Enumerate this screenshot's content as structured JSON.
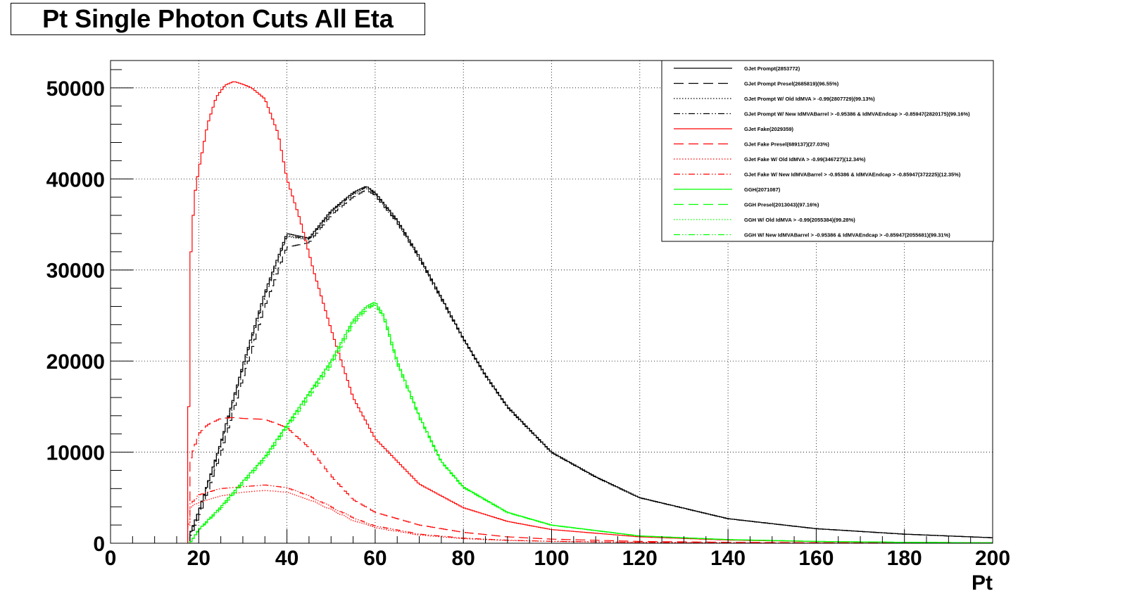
{
  "chart_data": {
    "type": "line",
    "title": "Pt Single Photon Cuts All Eta",
    "xlabel": "Pt",
    "ylabel": "",
    "xlim": [
      0,
      200
    ],
    "ylim": [
      0,
      53000
    ],
    "grid": true,
    "legend_position": "top-right",
    "x_ticks": [
      "0",
      "20",
      "40",
      "60",
      "80",
      "100",
      "120",
      "140",
      "160",
      "180",
      "200"
    ],
    "y_ticks": [
      "0",
      "10000",
      "20000",
      "30000",
      "40000",
      "50000"
    ],
    "series": [
      {
        "name": "GJet Prompt(2853772)",
        "color": "#000000",
        "dash": "solid",
        "x": [
          18,
          20,
          25,
          30,
          35,
          40,
          45,
          50,
          55,
          58,
          60,
          65,
          70,
          75,
          80,
          85,
          90,
          100,
          110,
          120,
          140,
          160,
          180,
          200
        ],
        "y": [
          1000,
          3500,
          11000,
          19500,
          27500,
          34000,
          33500,
          36500,
          38500,
          39200,
          38500,
          35500,
          31500,
          27000,
          22500,
          18500,
          15000,
          10000,
          7300,
          5000,
          2700,
          1600,
          1000,
          600
        ]
      },
      {
        "name": "GJet Prompt Presel(2685819)(96.55%)",
        "color": "#000000",
        "dash": "longdash",
        "x": [
          18,
          20,
          25,
          30,
          35,
          40,
          45,
          50,
          55,
          58,
          60,
          65,
          70,
          75,
          80,
          85,
          90,
          100,
          110,
          120,
          140,
          160,
          180,
          200
        ],
        "y": [
          600,
          2800,
          9800,
          18000,
          26000,
          32500,
          33000,
          36000,
          38000,
          38800,
          38200,
          35200,
          31300,
          26800,
          22400,
          18400,
          14900,
          9950,
          7250,
          4980,
          2690,
          1590,
          990,
          600
        ]
      },
      {
        "name": "GJet Prompt W/ Old IdMVA > -0.99(2807729)(99.13%)",
        "color": "#000000",
        "dash": "dotted",
        "x": [
          18,
          20,
          25,
          30,
          35,
          40,
          45,
          50,
          55,
          58,
          60,
          65,
          70,
          75,
          80,
          85,
          90,
          100,
          110,
          120,
          140,
          160,
          180,
          200
        ],
        "y": [
          900,
          3400,
          10800,
          19200,
          27200,
          33700,
          33300,
          36300,
          38300,
          39000,
          38300,
          35300,
          31300,
          26900,
          22400,
          18400,
          14950,
          9980,
          7280,
          4990,
          2690,
          1595,
          995,
          600
        ]
      },
      {
        "name": "GJet Prompt W/ New IdMVABarrel > -0.95386 & IdMVAEndcap > -0.85947(2820175)(99.16%)",
        "color": "#000000",
        "dash": "dashdotdot",
        "x": [
          18,
          20,
          25,
          30,
          35,
          40,
          45,
          50,
          55,
          58,
          60,
          65,
          70,
          75,
          80,
          85,
          90,
          100,
          110,
          120,
          140,
          160,
          180,
          200
        ],
        "y": [
          950,
          3450,
          10900,
          19300,
          27300,
          33800,
          33400,
          36400,
          38400,
          39100,
          38400,
          35400,
          31400,
          26950,
          22450,
          18450,
          14980,
          9990,
          7290,
          4995,
          2695,
          1598,
          998,
          600
        ]
      },
      {
        "name": "GJet Fake(2029359)",
        "color": "#ff0000",
        "dash": "solid",
        "x": [
          17.5,
          18,
          19,
          20,
          22,
          24,
          26,
          28,
          30,
          32,
          35,
          38,
          40,
          43,
          46,
          50,
          55,
          60,
          65,
          70,
          80,
          90,
          100,
          120,
          140,
          160,
          180,
          200
        ],
        "y": [
          0,
          30000,
          38000,
          41000,
          46000,
          49000,
          50300,
          50700,
          50400,
          50000,
          48800,
          45000,
          40000,
          35500,
          30000,
          23500,
          16000,
          11500,
          9000,
          6500,
          3900,
          2400,
          1500,
          700,
          350,
          180,
          100,
          50
        ]
      },
      {
        "name": "GJet Fake Presel(689137)(27.03%)",
        "color": "#ff0000",
        "dash": "longdash",
        "x": [
          17.5,
          18,
          20,
          22,
          25,
          28,
          30,
          35,
          40,
          45,
          50,
          55,
          60,
          70,
          80,
          90,
          100,
          120,
          140,
          160,
          180,
          200
        ],
        "y": [
          0,
          9000,
          12000,
          13000,
          13700,
          13800,
          13700,
          13600,
          12700,
          10500,
          7400,
          4800,
          3400,
          2000,
          1200,
          700,
          450,
          200,
          100,
          50,
          30,
          15
        ]
      },
      {
        "name": "GJet Fake W/ Old IdMVA > -0.99(346727)(12.34%)",
        "color": "#ff0000",
        "dash": "dotted",
        "x": [
          17.5,
          18,
          20,
          25,
          30,
          35,
          40,
          45,
          50,
          55,
          60,
          70,
          80,
          90,
          100,
          120,
          140,
          160,
          180,
          200
        ],
        "y": [
          0,
          3900,
          4500,
          5200,
          5600,
          5800,
          5600,
          4800,
          3700,
          2500,
          1700,
          900,
          500,
          300,
          200,
          90,
          40,
          20,
          10,
          5
        ]
      },
      {
        "name": "GJet Fake W/ New IdMVABarrel > -0.95386 & IdMVAEndcap > -0.85947(372225)(12.35%)",
        "color": "#ff0000",
        "dash": "dashdotdot",
        "x": [
          17.5,
          18,
          20,
          25,
          30,
          35,
          40,
          45,
          50,
          55,
          60,
          70,
          80,
          90,
          100,
          120,
          140,
          160,
          180,
          200
        ],
        "y": [
          0,
          4200,
          5300,
          6000,
          6200,
          6400,
          6100,
          5200,
          4000,
          2800,
          1900,
          1000,
          560,
          330,
          210,
          95,
          45,
          22,
          11,
          5
        ]
      },
      {
        "name": "GGH(2071087)",
        "color": "#00ff00",
        "dash": "solid",
        "x": [
          18,
          20,
          25,
          30,
          35,
          40,
          45,
          50,
          55,
          58,
          60,
          62,
          65,
          70,
          75,
          80,
          90,
          100,
          120,
          140,
          160,
          180,
          200
        ],
        "y": [
          0,
          1500,
          4000,
          6800,
          9500,
          13000,
          16500,
          20000,
          24500,
          26000,
          26500,
          25000,
          20000,
          14000,
          9000,
          6200,
          3400,
          2000,
          800,
          400,
          200,
          100,
          50
        ]
      },
      {
        "name": "GGH Presel(2013043)(97.16%)",
        "color": "#00ff00",
        "dash": "longdash",
        "x": [
          18,
          20,
          25,
          30,
          35,
          40,
          45,
          50,
          55,
          58,
          60,
          62,
          65,
          70,
          75,
          80,
          90,
          100,
          120,
          140,
          160,
          180,
          200
        ],
        "y": [
          0,
          1400,
          3800,
          6500,
          9200,
          12600,
          16000,
          19500,
          24000,
          25600,
          26200,
          24700,
          19700,
          13800,
          8900,
          6100,
          3350,
          1970,
          790,
          395,
          198,
          99,
          49
        ]
      },
      {
        "name": "GGH W/ Old IdMVA > -0.99(2055384)(99.28%)",
        "color": "#00ff00",
        "dash": "dotted",
        "x": [
          18,
          20,
          25,
          30,
          35,
          40,
          45,
          50,
          55,
          58,
          60,
          62,
          65,
          70,
          75,
          80,
          90,
          100,
          120,
          140,
          160,
          180,
          200
        ],
        "y": [
          0,
          1480,
          3960,
          6750,
          9430,
          12900,
          16400,
          19850,
          24300,
          25800,
          26300,
          24800,
          19850,
          13900,
          8950,
          6150,
          3380,
          1990,
          795,
          398,
          199,
          99,
          50
        ]
      },
      {
        "name": "GGH W/ New IdMVABarrel > -0.95386 & IdMVAEndcap > -0.85947(2055681)(99.31%)",
        "color": "#00ff00",
        "dash": "dashdotdot",
        "x": [
          18,
          20,
          25,
          30,
          35,
          40,
          45,
          50,
          55,
          58,
          60,
          62,
          65,
          70,
          75,
          80,
          90,
          100,
          120,
          140,
          160,
          180,
          200
        ],
        "y": [
          0,
          1485,
          3970,
          6760,
          9440,
          12910,
          16410,
          19860,
          24310,
          25810,
          26310,
          24810,
          19860,
          13910,
          8955,
          6155,
          3385,
          1992,
          796,
          398,
          199,
          99,
          50
        ]
      }
    ]
  }
}
